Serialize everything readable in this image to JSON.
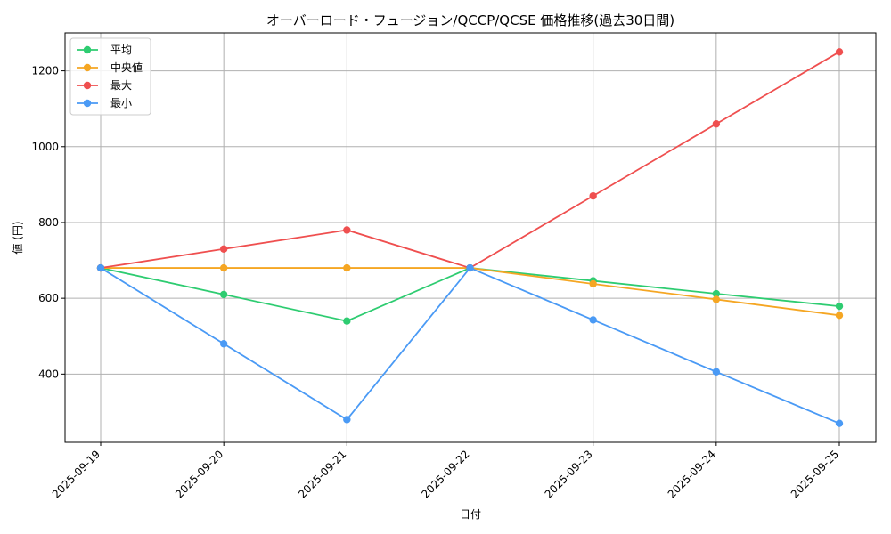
{
  "chart_data": {
    "type": "line",
    "title": "オーバーロード・フュージョン/QCCP/QCSE 価格推移(過去30日間)",
    "xlabel": "日付",
    "ylabel": "値 (円)",
    "categories": [
      "2025-09-19",
      "2025-09-20",
      "2025-09-21",
      "2025-09-22",
      "2025-09-23",
      "2025-09-24",
      "2025-09-25"
    ],
    "ylim": [
      220,
      1300
    ],
    "yticks": [
      400,
      600,
      800,
      1000,
      1200
    ],
    "grid": true,
    "legend_position": "top-left",
    "series": [
      {
        "name": "平均",
        "color": "#2ecc71",
        "values": [
          680,
          610,
          540,
          680,
          646,
          612,
          579
        ]
      },
      {
        "name": "中央値",
        "color": "#f5a623",
        "values": [
          680,
          680,
          680,
          680,
          638,
          597,
          555
        ]
      },
      {
        "name": "最大",
        "color": "#ef4f4f",
        "values": [
          680,
          730,
          780,
          680,
          870,
          1060,
          1250
        ]
      },
      {
        "name": "最小",
        "color": "#4a9af5",
        "values": [
          680,
          480,
          280,
          680,
          543,
          406,
          270
        ]
      }
    ]
  }
}
